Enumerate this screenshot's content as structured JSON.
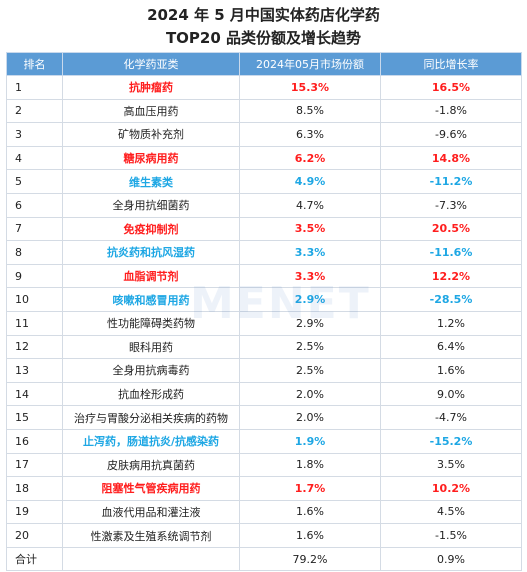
{
  "title_line1": "2024 年 5 月中国实体药店化学药",
  "title_line2": "TOP20 品类份额及增长趋势",
  "watermark": "米内网",
  "headers": [
    "排名",
    "化学药亚类",
    "2024年05月市场份额",
    "同比增长率"
  ],
  "rows": [
    {
      "rank": "1",
      "category": "抗肿瘤药",
      "share": "15.3%",
      "growth": "16.5%",
      "hl": "red"
    },
    {
      "rank": "2",
      "category": "高血压用药",
      "share": "8.5%",
      "growth": "-1.8%",
      "hl": ""
    },
    {
      "rank": "3",
      "category": "矿物质补充剂",
      "share": "6.3%",
      "growth": "-9.6%",
      "hl": ""
    },
    {
      "rank": "4",
      "category": "糖尿病用药",
      "share": "6.2%",
      "growth": "14.8%",
      "hl": "red"
    },
    {
      "rank": "5",
      "category": "维生素类",
      "share": "4.9%",
      "growth": "-11.2%",
      "hl": "blue"
    },
    {
      "rank": "6",
      "category": "全身用抗细菌药",
      "share": "4.7%",
      "growth": "-7.3%",
      "hl": ""
    },
    {
      "rank": "7",
      "category": "免疫抑制剂",
      "share": "3.5%",
      "growth": "20.5%",
      "hl": "red"
    },
    {
      "rank": "8",
      "category": "抗炎药和抗风湿药",
      "share": "3.3%",
      "growth": "-11.6%",
      "hl": "blue"
    },
    {
      "rank": "9",
      "category": "血脂调节剂",
      "share": "3.3%",
      "growth": "12.2%",
      "hl": "red"
    },
    {
      "rank": "10",
      "category": "咳嗽和感冒用药",
      "share": "2.9%",
      "growth": "-28.5%",
      "hl": "blue"
    },
    {
      "rank": "11",
      "category": "性功能障碍类药物",
      "share": "2.9%",
      "growth": "1.2%",
      "hl": ""
    },
    {
      "rank": "12",
      "category": "眼科用药",
      "share": "2.5%",
      "growth": "6.4%",
      "hl": ""
    },
    {
      "rank": "13",
      "category": "全身用抗病毒药",
      "share": "2.5%",
      "growth": "1.6%",
      "hl": ""
    },
    {
      "rank": "14",
      "category": "抗血栓形成药",
      "share": "2.0%",
      "growth": "9.0%",
      "hl": ""
    },
    {
      "rank": "15",
      "category": "治疗与胃酸分泌相关疾病的药物",
      "share": "2.0%",
      "growth": "-4.7%",
      "hl": ""
    },
    {
      "rank": "16",
      "category": "止泻药，肠道抗炎/抗感染药",
      "share": "1.9%",
      "growth": "-15.2%",
      "hl": "blue"
    },
    {
      "rank": "17",
      "category": "皮肤病用抗真菌药",
      "share": "1.8%",
      "growth": "3.5%",
      "hl": ""
    },
    {
      "rank": "18",
      "category": "阻塞性气管疾病用药",
      "share": "1.7%",
      "growth": "10.2%",
      "hl": "red"
    },
    {
      "rank": "19",
      "category": "血液代用品和灌注液",
      "share": "1.6%",
      "growth": "4.5%",
      "hl": ""
    },
    {
      "rank": "20",
      "category": "性激素及生殖系统调节剂",
      "share": "1.6%",
      "growth": "-1.5%",
      "hl": ""
    }
  ],
  "total": {
    "label": "合计",
    "category": "",
    "share": "79.2%",
    "growth": "0.9%"
  },
  "colors": {
    "header_bg": "#5b9bd5",
    "red": "#ff1e1e",
    "blue": "#1ea7e4"
  }
}
